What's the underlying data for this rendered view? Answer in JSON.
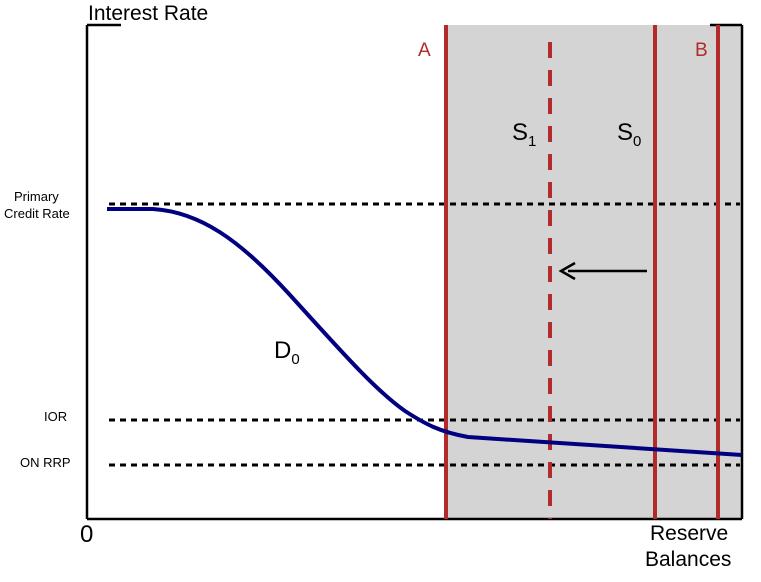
{
  "axes": {
    "y_label": "Interest Rate",
    "x_label_line1": "Reserve",
    "x_label_line2": "Balances",
    "origin_label": "0"
  },
  "levels": {
    "primary_line1": "Primary",
    "primary_line2": "Credit Rate",
    "ior": "IOR",
    "on_rrp": "ON RRP"
  },
  "curves": {
    "demand_base": "D",
    "demand_sub": "0",
    "supply0_base": "S",
    "supply0_sub": "0",
    "supply1_base": "S",
    "supply1_sub": "1"
  },
  "regions": {
    "left_bound": "A",
    "right_bound": "B"
  },
  "colors": {
    "demand_curve": "#000080",
    "supply_lines": "#b22a2a",
    "shaded_region": "#d4d4d4",
    "rate_lines": "#000000"
  }
}
